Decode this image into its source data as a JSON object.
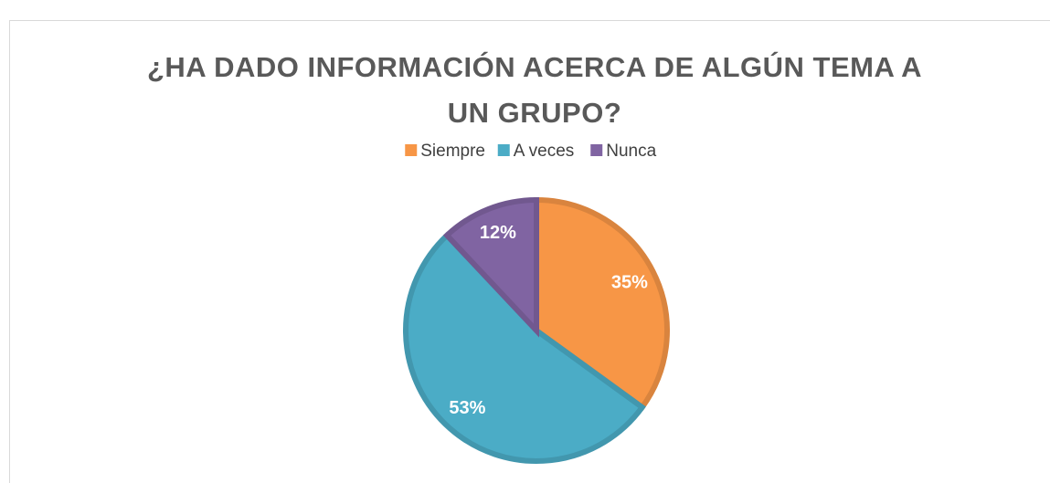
{
  "chart_data": {
    "type": "pie",
    "title": [
      "¿HA DADO INFORMACIÓN ACERCA DE ALGÚN TEMA A",
      "UN GRUPO?"
    ],
    "categories": [
      "Siempre",
      "A veces",
      "Nunca"
    ],
    "values": [
      35,
      53,
      12
    ],
    "colors": [
      "#f79646",
      "#4bacc6",
      "#8064a2"
    ],
    "legend": "top"
  }
}
